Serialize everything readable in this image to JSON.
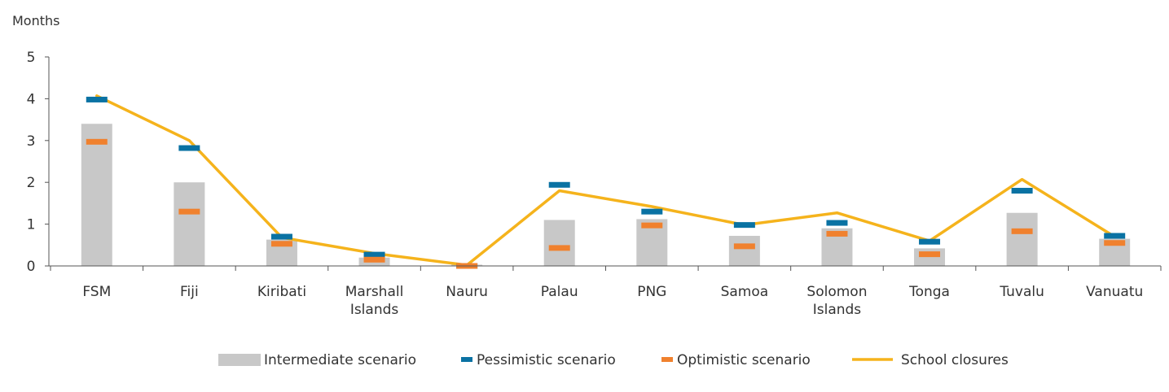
{
  "chart_data": {
    "type": "bar",
    "title": "",
    "xlabel": "",
    "ylabel": "Months",
    "ylim": [
      0,
      5
    ],
    "yticks": [
      0,
      1,
      2,
      3,
      4,
      5
    ],
    "grid": false,
    "legend_position": "bottom",
    "categories": [
      [
        "FSM"
      ],
      [
        "Fiji"
      ],
      [
        "Kiribati"
      ],
      [
        "Marshall",
        "Islands"
      ],
      [
        "Nauru"
      ],
      [
        "Palau"
      ],
      [
        "PNG"
      ],
      [
        "Samoa"
      ],
      [
        "Solomon",
        "Islands"
      ],
      [
        "Tonga"
      ],
      [
        "Tuvalu"
      ],
      [
        "Vanuatu"
      ]
    ],
    "series": [
      {
        "name": "Intermediate scenario",
        "kind": "bar",
        "color": "#c8c8c8",
        "values": [
          3.4,
          2.0,
          0.63,
          0.2,
          0.03,
          1.1,
          1.12,
          0.72,
          0.9,
          0.42,
          1.27,
          0.65
        ]
      },
      {
        "name": "Pessimistic scenario",
        "kind": "marker",
        "color": "#0a72a3",
        "values": [
          3.98,
          2.82,
          0.7,
          0.27,
          0.0,
          1.94,
          1.3,
          0.98,
          1.03,
          0.58,
          1.8,
          0.72
        ]
      },
      {
        "name": "Optimistic scenario",
        "kind": "marker",
        "color": "#f0812e",
        "values": [
          2.97,
          1.3,
          0.53,
          0.15,
          0.0,
          0.43,
          0.97,
          0.47,
          0.77,
          0.28,
          0.83,
          0.55
        ]
      },
      {
        "name": "School closures",
        "kind": "line",
        "color": "#f5b31c",
        "values": [
          4.07,
          3.0,
          0.68,
          0.3,
          0.02,
          1.8,
          1.42,
          0.98,
          1.27,
          0.6,
          2.07,
          0.7
        ]
      }
    ]
  }
}
